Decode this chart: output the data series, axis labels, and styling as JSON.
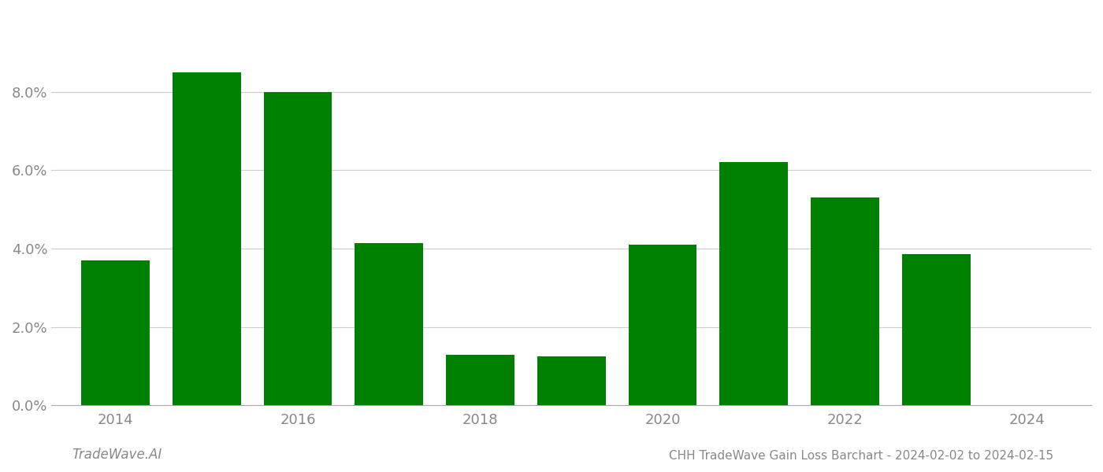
{
  "years": [
    2014,
    2015,
    2016,
    2017,
    2018,
    2019,
    2020,
    2021,
    2022,
    2023
  ],
  "values": [
    0.037,
    0.085,
    0.08,
    0.0415,
    0.013,
    0.0125,
    0.041,
    0.062,
    0.053,
    0.0385
  ],
  "bar_color": "#008000",
  "title": "CHH TradeWave Gain Loss Barchart - 2024-02-02 to 2024-02-15",
  "watermark": "TradeWave.AI",
  "ylim": [
    0,
    0.098
  ],
  "yticks": [
    0.0,
    0.02,
    0.04,
    0.06,
    0.08
  ],
  "xticks": [
    2014,
    2016,
    2018,
    2020,
    2022,
    2024
  ],
  "xlim": [
    2013.3,
    2024.7
  ],
  "grid_color": "#cccccc",
  "axis_color": "#aaaaaa",
  "tick_color": "#888888",
  "title_color": "#888888",
  "watermark_color": "#888888",
  "bg_color": "#ffffff",
  "bar_width": 0.75
}
